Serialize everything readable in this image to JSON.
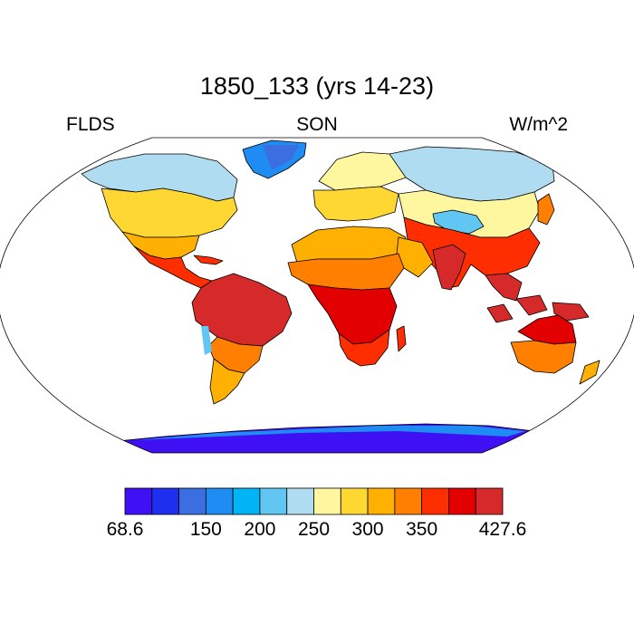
{
  "title": "1850_133 (yrs 14-23)",
  "left_label": "FLDS",
  "center_label": "SON",
  "right_label": "W/m^2",
  "colorbar": {
    "colors": [
      "#3e10f3",
      "#1f2ff0",
      "#3b6ee0",
      "#1e8cf3",
      "#00b4f5",
      "#62c6f3",
      "#b0dcf2",
      "#fff7a0",
      "#ffd733",
      "#ffb000",
      "#ff7f00",
      "#ff2e00",
      "#e30000",
      "#d62a2a"
    ],
    "tick_labels": [
      "68.6",
      "150",
      "200",
      "250",
      "300",
      "350",
      "427.6"
    ],
    "tick_positions": [
      0,
      3,
      5,
      7,
      9,
      11,
      14
    ]
  },
  "chart_data": {
    "type": "heatmap",
    "variable": "FLDS",
    "season": "SON",
    "units": "W/m^2",
    "range": [
      68.6,
      427.6
    ],
    "levels": [
      68.6,
      100,
      125,
      150,
      175,
      200,
      225,
      250,
      275,
      300,
      325,
      350,
      375,
      400,
      427.6
    ]
  }
}
